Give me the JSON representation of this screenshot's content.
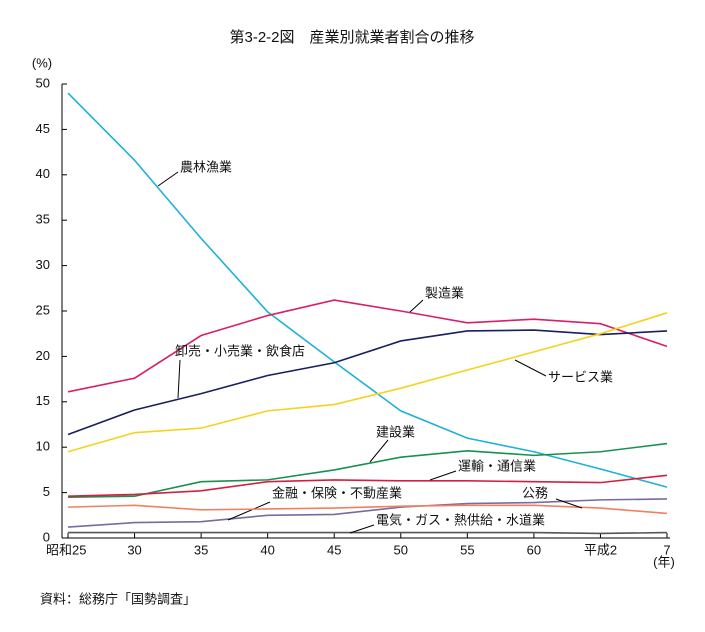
{
  "chart_data": {
    "type": "line",
    "title": "第3-2-2図　産業別就業者割合の推移",
    "y_unit": "(%)",
    "x_unit": "(年)",
    "source": "資料：総務庁「国勢調査」",
    "categories": [
      "昭和25",
      "30",
      "35",
      "40",
      "45",
      "50",
      "55",
      "60",
      "平成2",
      "7"
    ],
    "ylim": [
      0,
      50
    ],
    "yticks": [
      0,
      5,
      10,
      15,
      20,
      25,
      30,
      35,
      40,
      45,
      50
    ],
    "series": [
      {
        "name": "農林漁業",
        "color": "#1fb0d8",
        "values": [
          49,
          41.6,
          33,
          24.9,
          19.4,
          14,
          11,
          9.5,
          7.6,
          5.6
        ]
      },
      {
        "name": "製造業",
        "color": "#d8206a",
        "values": [
          16.1,
          17.6,
          22.3,
          24.5,
          26.2,
          25,
          23.7,
          24.1,
          23.6,
          21.1
        ]
      },
      {
        "name": "卸売・小売業・飲食店",
        "color": "#1a1f5e",
        "values": [
          11.4,
          14.1,
          15.9,
          17.9,
          19.3,
          21.7,
          22.8,
          22.9,
          22.4,
          22.8
        ]
      },
      {
        "name": "サービス業",
        "color": "#f4d21c",
        "values": [
          9.5,
          11.6,
          12.1,
          14,
          14.7,
          16.5,
          18.5,
          20.5,
          22.5,
          24.8
        ]
      },
      {
        "name": "建設業",
        "color": "#1a9050",
        "values": [
          4.5,
          4.6,
          6.2,
          6.4,
          7.5,
          8.9,
          9.6,
          9.1,
          9.5,
          10.4
        ]
      },
      {
        "name": "運輸・通信業",
        "color": "#d42040",
        "values": [
          4.6,
          4.8,
          5.2,
          6.2,
          6.4,
          6.3,
          6.3,
          6.2,
          6.1,
          6.9
        ]
      },
      {
        "name": "金融・保険・不動産業",
        "color": "#7a6aa0",
        "values": [
          1.2,
          1.7,
          1.8,
          2.5,
          2.6,
          3.4,
          3.8,
          3.9,
          4.2,
          4.3
        ]
      },
      {
        "name": "公務",
        "color": "#f08060",
        "values": [
          3.4,
          3.6,
          3.1,
          3.2,
          3.3,
          3.5,
          3.6,
          3.6,
          3.3,
          2.7
        ]
      },
      {
        "name": "電気・ガス・熱供給・水道業",
        "color": "#555555",
        "values": [
          0.6,
          0.6,
          0.6,
          0.6,
          0.6,
          0.6,
          0.6,
          0.6,
          0.5,
          0.6
        ]
      }
    ]
  }
}
